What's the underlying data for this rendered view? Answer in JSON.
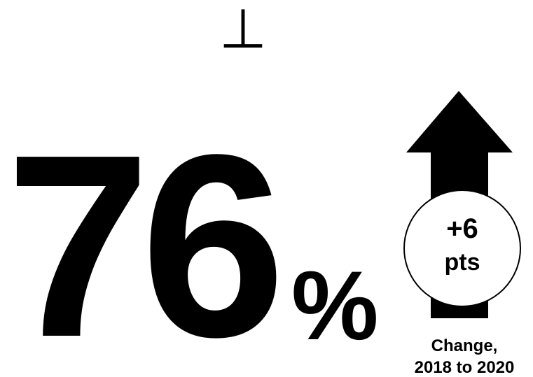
{
  "symbol": "⊥",
  "stat": {
    "value": "76",
    "unit": "%"
  },
  "change": {
    "value": "+6",
    "unit": "pts",
    "caption": [
      "Change,",
      "2018 to 2020"
    ]
  }
}
